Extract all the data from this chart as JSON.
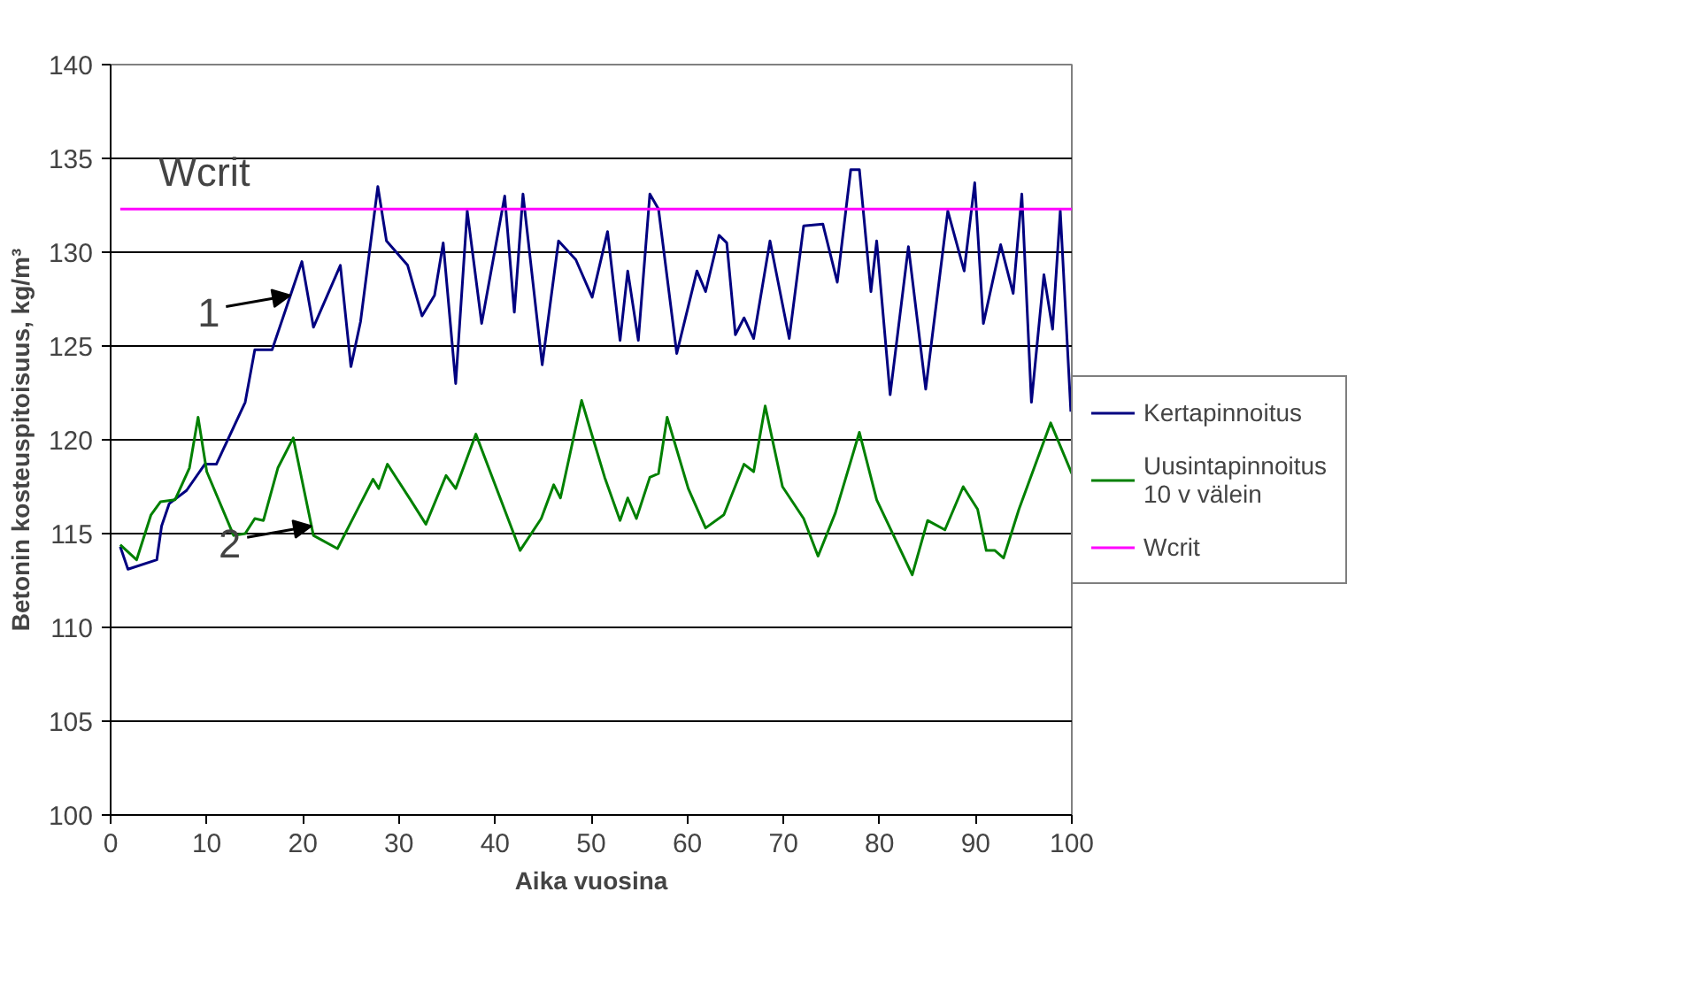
{
  "chart_data": {
    "type": "line",
    "xlabel": "Aika vuosina",
    "ylabel": "Betonin kosteuspitoisuus, kg/m³",
    "xlim": [
      0,
      100
    ],
    "xticks": [
      0,
      10,
      20,
      30,
      40,
      50,
      60,
      70,
      80,
      90,
      100
    ],
    "ylim": [
      100,
      140
    ],
    "yticks": [
      100,
      105,
      110,
      115,
      120,
      125,
      130,
      135,
      140
    ],
    "grid": "y",
    "legend": "right",
    "line_style": "solid",
    "marker": "none",
    "series": [
      {
        "name": "Kertapinnoitus",
        "color": "#000080",
        "x": [
          1.0,
          1.8,
          4.8,
          5.3,
          6.1,
          7.9,
          9.8,
          11.0,
          14.0,
          15.0,
          16.8,
          19.9,
          21.1,
          23.9,
          25.0,
          26.0,
          27.8,
          28.7,
          30.9,
          32.4,
          33.7,
          34.6,
          35.9,
          37.1,
          38.6,
          41.0,
          42.0,
          42.9,
          44.9,
          46.6,
          48.4,
          50.1,
          51.7,
          53.0,
          53.8,
          54.9,
          56.1,
          57.0,
          58.9,
          61.0,
          61.9,
          63.3,
          64.1,
          65.0,
          65.9,
          66.9,
          68.6,
          70.6,
          72.1,
          74.1,
          75.6,
          77.0,
          77.9,
          79.1,
          79.7,
          81.1,
          83.0,
          84.8,
          87.1,
          88.8,
          89.9,
          90.8,
          92.6,
          93.9,
          94.8,
          95.8,
          97.1,
          98.0,
          98.8,
          99.9
        ],
        "values": [
          114.3,
          113.1,
          113.6,
          115.4,
          116.6,
          117.3,
          118.7,
          118.7,
          122.0,
          124.8,
          124.8,
          129.5,
          126.0,
          129.3,
          123.9,
          126.3,
          133.5,
          130.6,
          129.3,
          126.6,
          127.7,
          130.5,
          123.0,
          132.2,
          126.2,
          133.0,
          126.8,
          133.1,
          124.0,
          130.6,
          129.6,
          127.6,
          131.1,
          125.3,
          129.0,
          125.3,
          133.1,
          132.3,
          124.6,
          129.0,
          127.9,
          130.9,
          130.5,
          125.6,
          126.5,
          125.4,
          130.6,
          125.4,
          131.4,
          131.5,
          128.4,
          134.4,
          134.4,
          127.9,
          130.6,
          122.4,
          130.3,
          122.7,
          132.2,
          129.0,
          133.7,
          126.2,
          130.4,
          127.8,
          133.1,
          122.0,
          128.8,
          125.9,
          132.2,
          121.5
        ]
      },
      {
        "name": "Uusintapinnoitus\n10 v välein",
        "color": "#008000",
        "x": [
          1.0,
          2.7,
          4.2,
          5.2,
          6.7,
          8.2,
          9.1,
          10.0,
          12.8,
          14.0,
          15.0,
          15.9,
          17.4,
          19.0,
          21.1,
          23.6,
          25.7,
          27.3,
          27.9,
          28.8,
          31.2,
          32.8,
          34.9,
          35.9,
          38.0,
          42.6,
          44.8,
          46.1,
          46.8,
          49.0,
          51.4,
          53.0,
          53.8,
          54.7,
          56.1,
          57.0,
          57.9,
          60.1,
          61.9,
          63.8,
          65.9,
          66.9,
          68.1,
          69.9,
          72.1,
          73.6,
          75.4,
          77.9,
          79.7,
          83.4,
          85.0,
          86.8,
          88.7,
          90.2,
          91.1,
          92.0,
          92.9,
          94.5,
          97.8,
          100.0
        ],
        "values": [
          114.4,
          113.6,
          116.0,
          116.7,
          116.8,
          118.5,
          121.2,
          118.3,
          114.9,
          115.0,
          115.8,
          115.7,
          118.5,
          120.1,
          114.9,
          114.2,
          116.3,
          117.9,
          117.4,
          118.7,
          116.8,
          115.5,
          118.1,
          117.4,
          120.3,
          114.1,
          115.8,
          117.6,
          116.9,
          122.1,
          118.0,
          115.7,
          116.9,
          115.8,
          118.0,
          118.2,
          121.2,
          117.4,
          115.3,
          116.0,
          118.7,
          118.3,
          121.8,
          117.5,
          115.8,
          113.8,
          116.1,
          120.4,
          116.8,
          112.8,
          115.7,
          115.2,
          117.5,
          116.3,
          114.1,
          114.1,
          113.7,
          116.3,
          120.9,
          118.2
        ]
      },
      {
        "name": "Wcrit",
        "color": "#ff00ff",
        "x": [
          1.0,
          100.0
        ],
        "values": [
          132.3,
          132.3
        ]
      }
    ],
    "annotations": [
      "Wcrit",
      {
        "text": "1",
        "x": 18.7,
        "y": 127.7
      },
      {
        "text": "2",
        "x": 20.9,
        "y": 115.4
      }
    ]
  }
}
